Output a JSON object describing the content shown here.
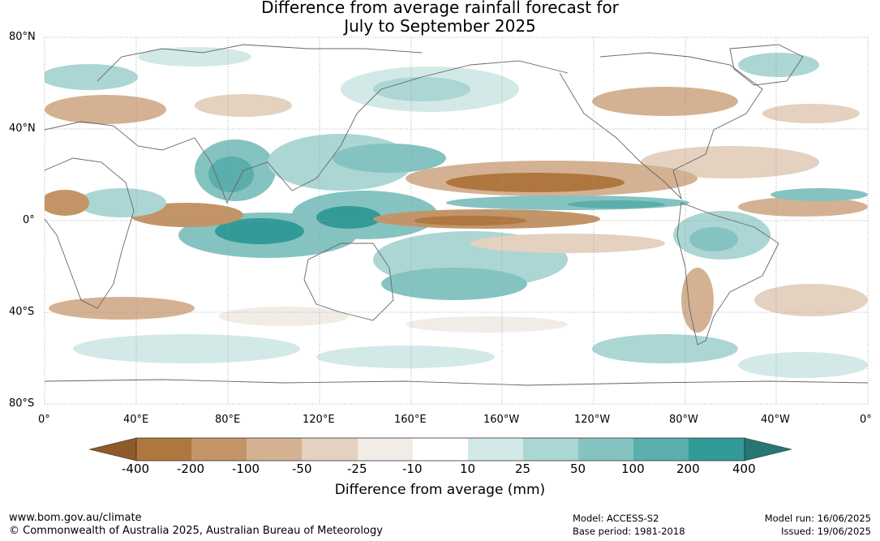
{
  "title_line1": "Difference from average rainfall forecast for",
  "title_line2": "July to September 2025",
  "lat_labels": [
    "80°N",
    "40°N",
    "0°",
    "40°S",
    "80°S"
  ],
  "lon_labels": [
    "0°",
    "40°E",
    "80°E",
    "120°E",
    "160°E",
    "160°W",
    "120°W",
    "80°W",
    "40°W",
    "0°"
  ],
  "colorbar": {
    "title": "Difference from average (mm)",
    "tick_labels": [
      "-400",
      "-200",
      "-100",
      "-50",
      "-25",
      "-10",
      "10",
      "25",
      "50",
      "100",
      "200",
      "400"
    ],
    "colors": {
      "lt_-400": "#8f5a2a",
      "-400_-200": "#af773f",
      "-200_-100": "#c29468",
      "-100_-50": "#d4b192",
      "-50_-25": "#e4d1bf",
      "-25_-10": "#f2ece6",
      "-10_10": "#ffffff",
      "10_25": "#d3e9e7",
      "25_50": "#abd6d4",
      "50_100": "#85c3c1",
      "100_200": "#5aaeac",
      "200_400": "#329a97",
      "gt_400": "#267675"
    }
  },
  "footer": {
    "website": "www.bom.gov.au/climate",
    "copyright": "© Commonwealth of Australia 2025, Australian Bureau of Meteorology",
    "model": "Model: ACCESS-S2",
    "base_period": "Base period: 1981-2018",
    "model_run": "Model run: 16/06/2025",
    "issued": "Issued: 19/06/2025"
  },
  "icons": [
    "coastline-outline"
  ]
}
